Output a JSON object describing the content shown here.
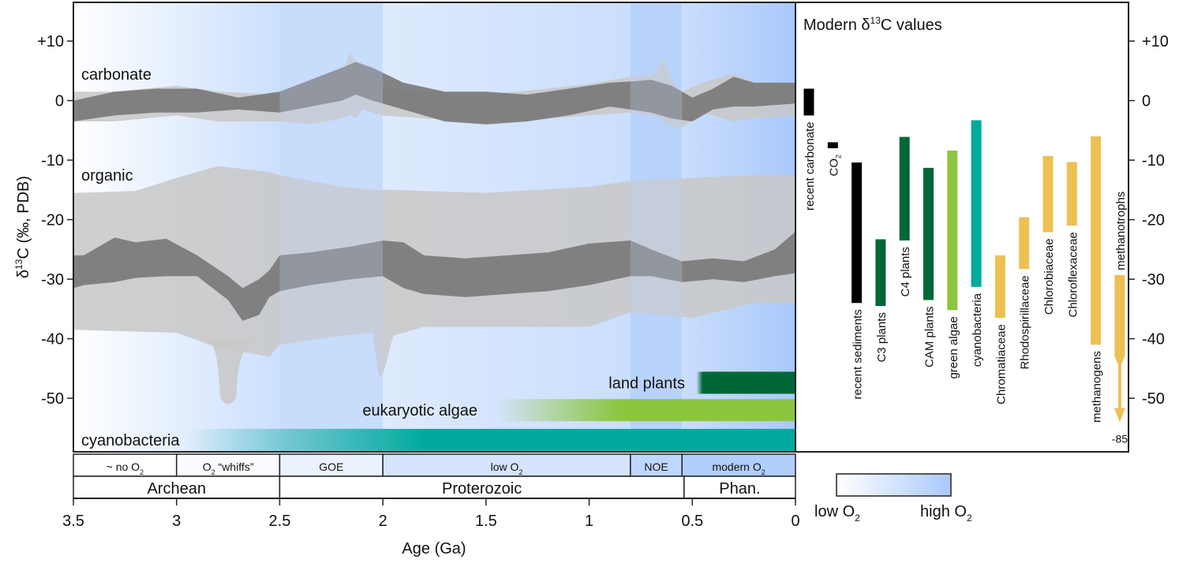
{
  "chart_data": [
    {
      "type": "area",
      "title": "",
      "xlabel": "Age (Ga)",
      "ylabel": "δ13C (‰, PDB)",
      "ylabel_parts": {
        "prefix": "δ",
        "sup": "13",
        "suffix": "C (‰, PDB)"
      },
      "xlim": [
        3.5,
        0
      ],
      "ylim": [
        -59,
        16.5
      ],
      "x_ticks": [
        3.5,
        3,
        2.5,
        2,
        1.5,
        1,
        0.5,
        0
      ],
      "x_tick_labels": [
        "3.5",
        "3",
        "2.5",
        "2",
        "1.5",
        "1",
        "0.5",
        "0"
      ],
      "y_ticks": [
        10,
        0,
        -10,
        -20,
        -30,
        -40,
        -50
      ],
      "y_tick_labels": [
        "+10",
        "0",
        "-10",
        "-20",
        "-30",
        "-40",
        "-50"
      ],
      "grid": false,
      "series_labels": {
        "carbonate": "carbonate",
        "organic": "organic"
      },
      "oxygen_background": [
        {
          "from": 3.5,
          "to": 2.5,
          "shade": "gradient-white-to-light"
        },
        {
          "from": 2.5,
          "to": 2.0,
          "shade": 0.55
        },
        {
          "from": 2.0,
          "to": 0.8,
          "shade": "gradient-light-to-mid"
        },
        {
          "from": 0.8,
          "to": 0.55,
          "shade": 0.85
        },
        {
          "from": 0.55,
          "to": 0.0,
          "shade": "gradient-mid-to-high"
        }
      ],
      "series": [
        {
          "name": "carbonate range",
          "kind": "band-light",
          "age": [
            3.5,
            3.3,
            3.0,
            2.8,
            2.5,
            2.35,
            2.2,
            2.16,
            2.13,
            2.1,
            2.0,
            1.8,
            1.5,
            1.2,
            1.0,
            0.8,
            0.68,
            0.64,
            0.6,
            0.55,
            0.45,
            0.3,
            0.2,
            0.0
          ],
          "upper": [
            1.5,
            1.5,
            2.5,
            1.5,
            1.0,
            2.5,
            4.5,
            8.0,
            6.5,
            4.5,
            2.0,
            1.5,
            1.0,
            2.0,
            2.8,
            4.0,
            4.5,
            7.0,
            3.5,
            1.5,
            3.0,
            4.5,
            3.0,
            2.5
          ],
          "lower": [
            -3.5,
            -3.5,
            -2.5,
            -3.5,
            -3.5,
            -4.0,
            -3.0,
            -2.5,
            -3.0,
            -1.5,
            -2.5,
            -3.0,
            -3.5,
            -3.0,
            -2.5,
            -2.0,
            -2.5,
            -3.5,
            -4.5,
            -4.5,
            -2.0,
            -3.5,
            -3.0,
            -2.5
          ]
        },
        {
          "name": "carbonate mean",
          "kind": "band-dark",
          "age": [
            3.5,
            3.3,
            3.1,
            2.9,
            2.7,
            2.5,
            2.35,
            2.2,
            2.13,
            2.05,
            1.9,
            1.7,
            1.5,
            1.3,
            1.1,
            0.9,
            0.8,
            0.7,
            0.6,
            0.5,
            0.4,
            0.3,
            0.2,
            0.0
          ],
          "upper": [
            0.0,
            1.5,
            2.0,
            2.0,
            0.5,
            1.5,
            3.5,
            5.5,
            6.5,
            5.5,
            3.0,
            1.5,
            1.5,
            1.0,
            2.0,
            3.0,
            3.2,
            3.5,
            2.5,
            0.5,
            2.0,
            4.0,
            3.0,
            3.0
          ],
          "lower": [
            -3.5,
            -2.5,
            -2.0,
            -2.0,
            -1.5,
            -2.0,
            -1.0,
            0.0,
            1.0,
            0.0,
            -1.5,
            -3.5,
            -4.0,
            -3.5,
            -2.5,
            -1.0,
            -1.5,
            -2.0,
            -3.0,
            -3.5,
            -1.5,
            -1.0,
            -1.0,
            -0.5
          ]
        },
        {
          "name": "organic range",
          "kind": "band-light",
          "age": [
            3.5,
            3.2,
            3.0,
            2.8,
            2.55,
            2.5,
            2.2,
            2.05,
            2.02,
            2.0,
            1.98,
            1.95,
            1.8,
            1.5,
            1.0,
            0.8,
            0.5,
            0.2,
            0.0
          ],
          "upper": [
            -15.5,
            -15.2,
            -13.0,
            -11.0,
            -12.0,
            -12.5,
            -14.5,
            -15.0,
            -15.0,
            -15.0,
            -15.0,
            -15.0,
            -15.2,
            -15.5,
            -14.5,
            -13.5,
            -13.0,
            -12.5,
            -12.5
          ],
          "lower": [
            -38.5,
            -38.8,
            -39.0,
            -41.5,
            -43.0,
            -41.0,
            -39.5,
            -39.0,
            -46.5,
            -46.0,
            -43.5,
            -39.5,
            -38.0,
            -38.0,
            -38.0,
            -35.5,
            -36.5,
            -34.0,
            -34.0
          ]
        },
        {
          "name": "organic low spike ~2.75 Ga",
          "kind": "band-light",
          "age": [
            2.85,
            2.8,
            2.78,
            2.75,
            2.72,
            2.7,
            2.68,
            2.62
          ],
          "upper": [
            -40.0,
            -41.0,
            -48.0,
            -51.5,
            -51.0,
            -48.0,
            -43.0,
            -41.0
          ],
          "lower": [
            -40.0,
            -41.0,
            -48.0,
            -51.5,
            -51.0,
            -48.0,
            -43.0,
            -41.0
          ]
        },
        {
          "name": "organic mean",
          "kind": "band-dark",
          "age": [
            3.5,
            3.45,
            3.3,
            3.2,
            3.05,
            2.9,
            2.75,
            2.68,
            2.6,
            2.55,
            2.5,
            2.35,
            2.15,
            2.0,
            1.9,
            1.8,
            1.6,
            1.4,
            1.2,
            1.0,
            0.8,
            0.7,
            0.55,
            0.4,
            0.25,
            0.1,
            0.0
          ],
          "upper": [
            -26.0,
            -26.0,
            -23.0,
            -23.8,
            -23.2,
            -26.0,
            -29.5,
            -31.5,
            -30.0,
            -28.5,
            -26.0,
            -25.5,
            -24.5,
            -23.5,
            -23.8,
            -26.0,
            -26.5,
            -26.0,
            -25.5,
            -24.0,
            -23.5,
            -25.0,
            -27.0,
            -26.5,
            -27.0,
            -25.0,
            -22.0
          ],
          "lower": [
            -31.5,
            -31.0,
            -30.5,
            -29.8,
            -29.5,
            -29.5,
            -33.5,
            -37.0,
            -36.0,
            -33.0,
            -32.0,
            -31.0,
            -30.0,
            -29.5,
            -31.5,
            -32.5,
            -33.0,
            -32.5,
            -32.0,
            -31.0,
            -29.5,
            -29.5,
            -30.5,
            -30.0,
            -30.5,
            -29.5,
            -29.0
          ]
        }
      ],
      "organism_ranges": [
        {
          "name": "land plants",
          "label": "land plants",
          "start_age": 0.48,
          "fade_to_age": 0.45,
          "end_age": 0.0,
          "color": "#006837"
        },
        {
          "name": "eukaryotic algae",
          "label": "eukaryotic algae",
          "start_age": 1.45,
          "fade_to_age": 0.85,
          "end_age": 0.0,
          "color": "#8cc63f"
        },
        {
          "name": "cyanobacteria",
          "label": "cyanobacteria",
          "start_age": 2.95,
          "fade_to_age": 1.8,
          "end_age": 0.0,
          "color": "#00a99d"
        }
      ],
      "oxygen_phases": [
        {
          "label": "~ no O",
          "sub": "2",
          "suffix": "",
          "from": 3.5,
          "to": 3.0,
          "shade": 0.0
        },
        {
          "label": "O",
          "sub": "2",
          "suffix": " “whiffs”",
          "from": 3.0,
          "to": 2.5,
          "shade": 0.05
        },
        {
          "label": "GOE",
          "sub": "",
          "suffix": "",
          "from": 2.5,
          "to": 2.0,
          "shade": 0.25
        },
        {
          "label": "low O",
          "sub": "2",
          "suffix": "",
          "from": 2.0,
          "to": 0.8,
          "shade": 0.5
        },
        {
          "label": "NOE",
          "sub": "",
          "suffix": "",
          "from": 0.8,
          "to": 0.55,
          "shade": 0.75
        },
        {
          "label": "modern O",
          "sub": "2",
          "suffix": "",
          "from": 0.55,
          "to": 0.0,
          "shade": 0.9
        }
      ],
      "eons": [
        {
          "label": "Archean",
          "from": 3.5,
          "to": 2.5
        },
        {
          "label": "Proterozoic",
          "from": 2.5,
          "to": 0.54
        },
        {
          "label": "Phan.",
          "from": 0.54,
          "to": 0.0
        }
      ],
      "oxygen_legend": {
        "low": "low O",
        "high": "high O",
        "sub": "2"
      }
    },
    {
      "type": "bar",
      "subtype": "floating-range",
      "title": "Modern δ13C values",
      "title_parts": {
        "prefix": "Modern δ",
        "sup": "13",
        "suffix": "C values"
      },
      "ylim": [
        -59,
        16.5
      ],
      "y_ticks": [
        10,
        0,
        -10,
        -20,
        -30,
        -40,
        -50
      ],
      "y_tick_labels": [
        "+10",
        "0",
        "-10",
        "-20",
        "-30",
        "-40",
        "-50"
      ],
      "categories": [
        "recent carbonate",
        "CO2",
        "recent sediments",
        "C3 plants",
        "C4 plants",
        "CAM plants",
        "green algae",
        "cyanobacteria",
        "Chromatiaceae",
        "Rhodospirillaceae",
        "Chlorobiaceae",
        "Chloroflexaceae",
        "methanogens",
        "methanotrophs"
      ],
      "bars": [
        {
          "label": "recent carbonate",
          "sub": "",
          "high": 2.0,
          "low": -2.5,
          "color": "#000000",
          "label_pos": "below"
        },
        {
          "label": "CO",
          "sub": "2",
          "high": -7.0,
          "low": -8.0,
          "color": "#000000",
          "label_pos": "below"
        },
        {
          "label": "recent sediments",
          "sub": "",
          "high": -10.4,
          "low": -34.0,
          "color": "#000000",
          "label_pos": "below"
        },
        {
          "label": "C3 plants",
          "sub": "",
          "high": -23.3,
          "low": -34.5,
          "color": "#006837",
          "label_pos": "below"
        },
        {
          "label": "C4 plants",
          "sub": "",
          "high": -6.1,
          "low": -23.5,
          "color": "#006837",
          "label_pos": "below"
        },
        {
          "label": "CAM plants",
          "sub": "",
          "high": -11.3,
          "low": -33.5,
          "color": "#006837",
          "label_pos": "below"
        },
        {
          "label": "green algae",
          "sub": "",
          "high": -8.4,
          "low": -35.2,
          "color": "#8cc63f",
          "label_pos": "below"
        },
        {
          "label": "cyanobacteria",
          "sub": "",
          "high": -3.3,
          "low": -31.3,
          "color": "#00a99d",
          "label_pos": "below"
        },
        {
          "label": "Chromatiaceae",
          "sub": "",
          "high": -26.0,
          "low": -36.5,
          "color": "#ecc153",
          "label_pos": "below"
        },
        {
          "label": "Rhodospirillaceae",
          "sub": "",
          "high": -19.6,
          "low": -28.3,
          "color": "#ecc153",
          "label_pos": "below"
        },
        {
          "label": "Chlorobiaceae",
          "sub": "",
          "high": -9.3,
          "low": -22.1,
          "color": "#ecc153",
          "label_pos": "below"
        },
        {
          "label": "Chloroflexaceae",
          "sub": "",
          "high": -10.3,
          "low": -21.0,
          "color": "#ecc153",
          "label_pos": "below"
        },
        {
          "label": "methanogens",
          "sub": "",
          "high": -6.0,
          "low": -41.0,
          "color": "#ecc153",
          "label_pos": "below"
        },
        {
          "label": "methanotrophs",
          "sub": "",
          "high": -29.3,
          "low": -85.0,
          "solid_to": -43.0,
          "color": "#ecc153",
          "label_pos": "above",
          "arrow": true,
          "arrow_label": "-85"
        }
      ]
    }
  ],
  "colors": {
    "band_light": "#c8c8c8",
    "band_dark": "#7a7a7a",
    "o2_low": "#ffffff",
    "o2_high": "#a9c9fb",
    "axis": "#222222"
  }
}
